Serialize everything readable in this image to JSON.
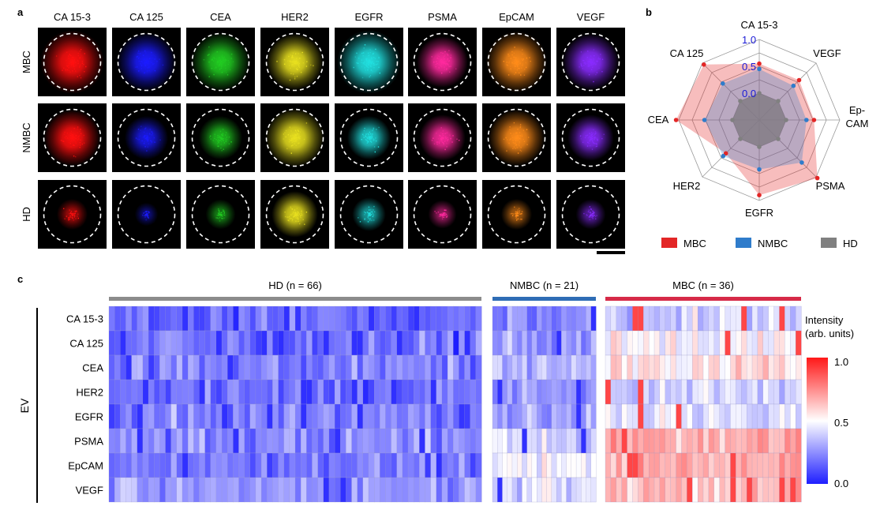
{
  "panels": {
    "a": "a",
    "b": "b",
    "c": "c"
  },
  "panel_a": {
    "columns": [
      "CA 15-3",
      "CA 125",
      "CEA",
      "HER2",
      "EGFR",
      "PSMA",
      "EpCAM",
      "VEGF"
    ],
    "rows": [
      "MBC",
      "NMBC",
      "HD"
    ],
    "marker_colors": [
      "#ff1010",
      "#1c1cff",
      "#22cc22",
      "#e8e020",
      "#22e0e0",
      "#ff2a9e",
      "#ff8c1a",
      "#8a2cff"
    ],
    "intensity": [
      [
        0.95,
        0.85,
        0.85,
        0.8,
        0.95,
        0.7,
        0.9,
        0.8
      ],
      [
        0.8,
        0.55,
        0.55,
        0.85,
        0.55,
        0.6,
        0.8,
        0.6
      ],
      [
        0.3,
        0.15,
        0.28,
        0.6,
        0.35,
        0.25,
        0.3,
        0.28
      ]
    ]
  },
  "chart_data": [
    {
      "type": "radar",
      "axes": [
        "CA 15-3",
        "VEGF",
        "Ep-\nCAM",
        "PSMA",
        "EGFR",
        "HER2",
        "CEA",
        "CA 125"
      ],
      "radial_ticks": [
        "0.0",
        "0.5",
        "1.0"
      ],
      "rlim": [
        -0.5,
        1.0
      ],
      "series": [
        {
          "name": "MBC",
          "color": "#e32626",
          "values": [
            0.55,
            0.55,
            0.52,
            1.03,
            0.9,
            0.38,
            1.05,
            0.96
          ]
        },
        {
          "name": "NMBC",
          "color": "#2f7ccb",
          "values": [
            0.45,
            0.4,
            0.38,
            0.62,
            0.42,
            0.45,
            0.52,
            0.46
          ]
        },
        {
          "name": "HD",
          "color": "#808080",
          "values": [
            0.0,
            0.0,
            0.0,
            0.0,
            0.0,
            0.0,
            0.0,
            0.0
          ]
        }
      ]
    },
    {
      "type": "heatmap",
      "ylabel": "EV",
      "rows": [
        "CA 15-3",
        "CA 125",
        "CEA",
        "HER2",
        "EGFR",
        "PSMA",
        "EpCAM",
        "VEGF"
      ],
      "groups": [
        {
          "label": "HD (n = 66)",
          "name": "HD",
          "n": 66,
          "color": "#8c8c8c"
        },
        {
          "label": "NMBC (n = 21)",
          "name": "NMBC",
          "n": 21,
          "color": "#2f6db5"
        },
        {
          "label": "MBC (n = 36)",
          "name": "MBC",
          "n": 36,
          "color": "#d62a48"
        }
      ],
      "colorbar": {
        "title": "Intensity\n(arb. units)",
        "ticks": [
          "1.0",
          "0.5",
          "0.0"
        ],
        "range": [
          0,
          1
        ]
      }
    }
  ]
}
